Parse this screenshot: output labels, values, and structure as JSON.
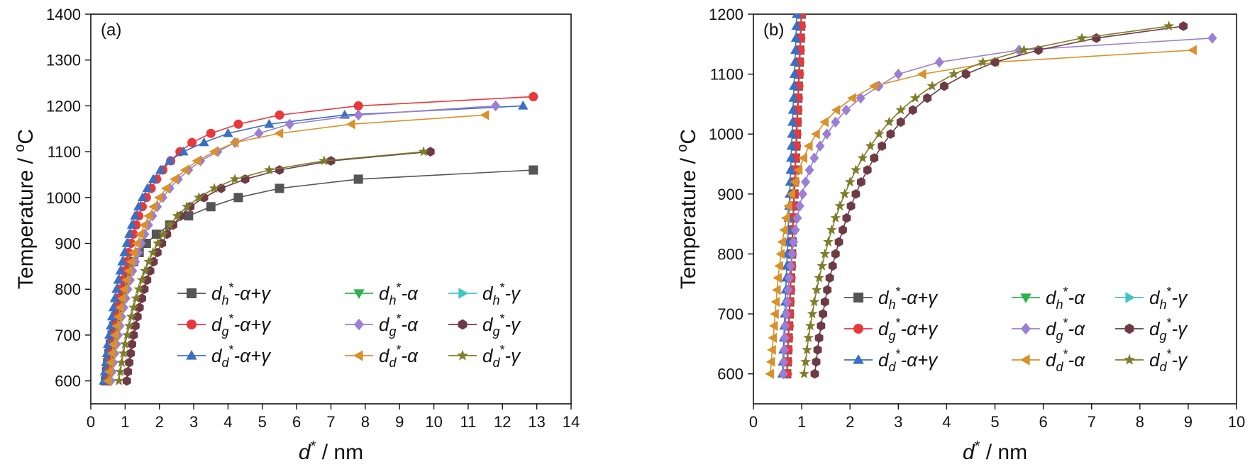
{
  "chart_data": [
    {
      "type": "line",
      "panel_label": "(a)",
      "xlabel": "d* / nm",
      "ylabel": "Temperature / oC",
      "xlim": [
        0,
        14
      ],
      "ylim": [
        550,
        1400
      ],
      "xticks": [
        "0",
        "1",
        "2",
        "3",
        "4",
        "5",
        "6",
        "7",
        "8",
        "9",
        "10",
        "11",
        "12",
        "13",
        "14"
      ],
      "yticks": [
        "600",
        "700",
        "800",
        "900",
        "1000",
        "1100",
        "1200",
        "1300",
        "1400"
      ],
      "legend_position": "bottom-right",
      "series": [
        {
          "name": "dh*-α+γ",
          "color": "#555555",
          "marker": "square",
          "x": [
            0.43,
            0.46,
            0.49,
            0.53,
            0.57,
            0.62,
            0.67,
            0.72,
            0.78,
            0.85,
            0.93,
            1.02,
            1.13,
            1.25,
            1.41,
            1.62,
            1.91,
            2.3,
            2.85,
            3.5,
            4.3,
            5.5,
            7.8,
            12.9
          ],
          "y": [
            600,
            620,
            640,
            660,
            680,
            700,
            720,
            740,
            760,
            780,
            800,
            820,
            840,
            860,
            880,
            900,
            920,
            940,
            960,
            980,
            1000,
            1020,
            1040,
            1060
          ]
        },
        {
          "name": "dg*-α+γ",
          "color": "#e8383b",
          "marker": "circle",
          "x": [
            0.46,
            0.49,
            0.52,
            0.56,
            0.6,
            0.64,
            0.68,
            0.72,
            0.77,
            0.82,
            0.87,
            0.92,
            0.98,
            1.04,
            1.1,
            1.17,
            1.24,
            1.32,
            1.4,
            1.5,
            1.62,
            1.76,
            1.92,
            2.1,
            2.33,
            2.6,
            2.95,
            3.5,
            4.3,
            5.5,
            7.8,
            12.9
          ],
          "y": [
            600,
            620,
            640,
            660,
            680,
            700,
            720,
            740,
            760,
            780,
            800,
            820,
            840,
            860,
            880,
            900,
            920,
            940,
            960,
            980,
            1000,
            1020,
            1040,
            1060,
            1080,
            1100,
            1120,
            1140,
            1160,
            1180,
            1200,
            1220
          ]
        },
        {
          "name": "dd*-α+γ",
          "color": "#3b6fc4",
          "marker": "triangle-up",
          "x": [
            0.38,
            0.41,
            0.44,
            0.47,
            0.5,
            0.54,
            0.58,
            0.62,
            0.66,
            0.7,
            0.75,
            0.8,
            0.86,
            0.92,
            0.98,
            1.05,
            1.12,
            1.2,
            1.29,
            1.39,
            1.51,
            1.65,
            1.82,
            2.03,
            2.3,
            2.7,
            3.3,
            4.0,
            5.2,
            7.4,
            12.6
          ],
          "y": [
            600,
            620,
            640,
            660,
            680,
            700,
            720,
            740,
            760,
            780,
            800,
            820,
            840,
            860,
            880,
            900,
            920,
            940,
            960,
            980,
            1000,
            1020,
            1040,
            1060,
            1080,
            1100,
            1120,
            1140,
            1160,
            1180,
            1200
          ]
        },
        {
          "name": "dh*-α",
          "color": "#2bb24c",
          "marker": "triangle-down",
          "x": [],
          "y": []
        },
        {
          "name": "dg*-α",
          "color": "#9b7fd4",
          "marker": "diamond",
          "x": [
            0.58,
            0.62,
            0.66,
            0.7,
            0.75,
            0.8,
            0.85,
            0.9,
            0.96,
            1.02,
            1.08,
            1.15,
            1.22,
            1.3,
            1.38,
            1.47,
            1.57,
            1.68,
            1.8,
            1.94,
            2.1,
            2.3,
            2.55,
            2.85,
            3.2,
            3.7,
            4.2,
            4.9,
            5.8,
            7.8,
            11.8
          ],
          "y": [
            600,
            620,
            640,
            660,
            680,
            700,
            720,
            740,
            760,
            780,
            800,
            820,
            840,
            860,
            880,
            900,
            920,
            940,
            960,
            980,
            1000,
            1020,
            1040,
            1060,
            1080,
            1100,
            1120,
            1140,
            1160,
            1180,
            1200
          ]
        },
        {
          "name": "dd*-α",
          "color": "#d9912a",
          "marker": "triangle-left",
          "x": [
            0.5,
            0.54,
            0.58,
            0.62,
            0.66,
            0.71,
            0.76,
            0.81,
            0.86,
            0.92,
            0.98,
            1.04,
            1.11,
            1.18,
            1.26,
            1.35,
            1.45,
            1.56,
            1.69,
            1.83,
            2.0,
            2.2,
            2.45,
            2.75,
            3.1,
            3.6,
            4.2,
            5.5,
            7.6,
            11.5
          ],
          "y": [
            600,
            620,
            640,
            660,
            680,
            700,
            720,
            740,
            760,
            780,
            800,
            820,
            840,
            860,
            880,
            900,
            920,
            940,
            960,
            980,
            1000,
            1020,
            1040,
            1060,
            1080,
            1100,
            1120,
            1140,
            1160,
            1180
          ]
        },
        {
          "name": "dh*-γ",
          "color": "#40c4c4",
          "marker": "triangle-right",
          "x": [],
          "y": []
        },
        {
          "name": "dg*-γ",
          "color": "#6e3a45",
          "marker": "hexagon",
          "x": [
            1.05,
            1.08,
            1.12,
            1.16,
            1.2,
            1.25,
            1.3,
            1.36,
            1.42,
            1.49,
            1.56,
            1.64,
            1.73,
            1.83,
            1.94,
            2.07,
            2.22,
            2.4,
            2.62,
            2.9,
            3.3,
            3.8,
            4.5,
            5.5,
            7.0,
            9.9
          ],
          "y": [
            600,
            620,
            640,
            660,
            680,
            700,
            720,
            740,
            760,
            780,
            800,
            820,
            840,
            860,
            880,
            900,
            920,
            940,
            960,
            980,
            1000,
            1020,
            1040,
            1060,
            1080,
            1100
          ]
        },
        {
          "name": "dd*-γ",
          "color": "#7d7d2a",
          "marker": "star",
          "x": [
            0.82,
            0.86,
            0.9,
            0.95,
            1.0,
            1.06,
            1.12,
            1.18,
            1.25,
            1.32,
            1.4,
            1.49,
            1.58,
            1.69,
            1.81,
            1.95,
            2.11,
            2.3,
            2.52,
            2.8,
            3.15,
            3.6,
            4.2,
            5.2,
            6.8,
            9.7
          ],
          "y": [
            600,
            620,
            640,
            660,
            680,
            700,
            720,
            740,
            760,
            780,
            800,
            820,
            840,
            860,
            880,
            900,
            920,
            940,
            960,
            980,
            1000,
            1020,
            1040,
            1060,
            1080,
            1100
          ]
        }
      ]
    },
    {
      "type": "line",
      "panel_label": "(b)",
      "xlabel": "d* / nm",
      "ylabel": "Temperature / oC",
      "xlim": [
        0,
        10
      ],
      "ylim": [
        550,
        1200
      ],
      "xticks": [
        "0",
        "1",
        "2",
        "3",
        "4",
        "5",
        "6",
        "7",
        "8",
        "9",
        "10"
      ],
      "yticks": [
        "600",
        "700",
        "800",
        "900",
        "1000",
        "1100",
        "1200"
      ],
      "legend_position": "bottom-right",
      "series": [
        {
          "name": "dh*-α+γ",
          "color": "#555555",
          "marker": "square",
          "x": [
            0.69,
            0.7,
            0.71,
            0.72,
            0.73,
            0.74,
            0.75,
            0.76,
            0.77,
            0.78,
            0.79,
            0.8,
            0.81,
            0.82,
            0.83,
            0.84,
            0.85,
            0.86,
            0.87,
            0.88,
            0.89,
            0.9,
            0.91,
            0.92,
            0.93,
            0.94,
            0.95,
            0.96,
            0.97,
            0.98,
            0.99
          ],
          "y": [
            600,
            620,
            640,
            660,
            680,
            700,
            720,
            740,
            760,
            780,
            800,
            820,
            840,
            860,
            880,
            900,
            920,
            940,
            960,
            980,
            1000,
            1020,
            1040,
            1060,
            1080,
            1100,
            1120,
            1140,
            1160,
            1180,
            1200
          ]
        },
        {
          "name": "dg*-α+γ",
          "color": "#e8383b",
          "marker": "circle",
          "x": [
            0.7,
            0.71,
            0.72,
            0.73,
            0.74,
            0.75,
            0.76,
            0.77,
            0.78,
            0.79,
            0.8,
            0.81,
            0.82,
            0.83,
            0.84,
            0.85,
            0.86,
            0.87,
            0.88,
            0.89,
            0.9,
            0.91,
            0.92,
            0.93,
            0.94,
            0.95,
            0.96,
            0.97,
            0.98,
            0.99,
            1.0
          ],
          "y": [
            600,
            620,
            640,
            660,
            680,
            700,
            720,
            740,
            760,
            780,
            800,
            820,
            840,
            860,
            880,
            900,
            920,
            940,
            960,
            980,
            1000,
            1020,
            1040,
            1060,
            1080,
            1100,
            1120,
            1140,
            1160,
            1180,
            1200
          ]
        },
        {
          "name": "dd*-α+γ",
          "color": "#3b6fc4",
          "marker": "triangle-up",
          "x": [
            0.6,
            0.61,
            0.62,
            0.63,
            0.64,
            0.65,
            0.66,
            0.67,
            0.68,
            0.69,
            0.7,
            0.71,
            0.72,
            0.73,
            0.74,
            0.75,
            0.76,
            0.77,
            0.78,
            0.79,
            0.8,
            0.81,
            0.82,
            0.83,
            0.84,
            0.85,
            0.86,
            0.87,
            0.88,
            0.89,
            0.9
          ],
          "y": [
            600,
            620,
            640,
            660,
            680,
            700,
            720,
            740,
            760,
            780,
            800,
            820,
            840,
            860,
            880,
            900,
            920,
            940,
            960,
            980,
            1000,
            1020,
            1040,
            1060,
            1080,
            1100,
            1120,
            1140,
            1160,
            1180,
            1200
          ]
        },
        {
          "name": "dh*-α",
          "color": "#2bb24c",
          "marker": "triangle-down",
          "x": [],
          "y": []
        },
        {
          "name": "dg*-α",
          "color": "#9b7fd4",
          "marker": "diamond",
          "x": [
            0.62,
            0.63,
            0.64,
            0.65,
            0.66,
            0.68,
            0.7,
            0.72,
            0.74,
            0.77,
            0.8,
            0.83,
            0.87,
            0.91,
            0.96,
            1.02,
            1.08,
            1.16,
            1.26,
            1.38,
            1.52,
            1.7,
            1.92,
            2.22,
            2.6,
            3.0,
            3.85,
            5.5,
            9.5
          ],
          "y": [
            600,
            620,
            640,
            660,
            680,
            700,
            720,
            740,
            760,
            780,
            800,
            820,
            840,
            860,
            880,
            900,
            920,
            940,
            960,
            980,
            1000,
            1020,
            1040,
            1060,
            1080,
            1100,
            1120,
            1140,
            1160
          ]
        },
        {
          "name": "dd*-α",
          "color": "#d9912a",
          "marker": "triangle-left",
          "x": [
            0.35,
            0.37,
            0.39,
            0.41,
            0.43,
            0.45,
            0.47,
            0.49,
            0.51,
            0.54,
            0.57,
            0.6,
            0.64,
            0.68,
            0.73,
            0.79,
            0.86,
            0.94,
            1.04,
            1.15,
            1.3,
            1.48,
            1.72,
            2.05,
            2.5,
            3.5,
            5.0,
            9.1
          ],
          "y": [
            600,
            620,
            640,
            660,
            680,
            700,
            720,
            740,
            760,
            780,
            800,
            820,
            840,
            860,
            880,
            900,
            920,
            940,
            960,
            980,
            1000,
            1020,
            1040,
            1060,
            1080,
            1100,
            1120,
            1140
          ]
        },
        {
          "name": "dh*-γ",
          "color": "#40c4c4",
          "marker": "triangle-right",
          "x": [],
          "y": []
        },
        {
          "name": "dg*-γ",
          "color": "#6e3a45",
          "marker": "hexagon",
          "x": [
            1.27,
            1.3,
            1.33,
            1.36,
            1.4,
            1.44,
            1.48,
            1.53,
            1.58,
            1.64,
            1.7,
            1.77,
            1.85,
            1.93,
            2.02,
            2.12,
            2.23,
            2.36,
            2.5,
            2.66,
            2.84,
            3.05,
            3.3,
            3.6,
            3.95,
            4.4,
            5.0,
            5.9,
            7.1,
            8.9
          ],
          "y": [
            600,
            620,
            640,
            660,
            680,
            700,
            720,
            740,
            760,
            780,
            800,
            820,
            840,
            860,
            880,
            900,
            920,
            940,
            960,
            980,
            1000,
            1020,
            1040,
            1060,
            1080,
            1100,
            1120,
            1140,
            1160,
            1180
          ]
        },
        {
          "name": "dd*-γ",
          "color": "#7d7d2a",
          "marker": "star",
          "x": [
            1.05,
            1.08,
            1.11,
            1.14,
            1.18,
            1.22,
            1.26,
            1.31,
            1.36,
            1.42,
            1.48,
            1.55,
            1.62,
            1.7,
            1.79,
            1.89,
            2.0,
            2.12,
            2.26,
            2.42,
            2.6,
            2.81,
            3.05,
            3.35,
            3.7,
            4.15,
            4.75,
            5.6,
            6.8,
            8.6
          ],
          "y": [
            600,
            620,
            640,
            660,
            680,
            700,
            720,
            740,
            760,
            780,
            800,
            820,
            840,
            860,
            880,
            900,
            920,
            940,
            960,
            980,
            1000,
            1020,
            1040,
            1060,
            1080,
            1100,
            1120,
            1140,
            1160,
            1180
          ]
        }
      ]
    }
  ],
  "legend": {
    "entries": [
      {
        "base": "d",
        "sub": "h",
        "sup": "*",
        "suffix": "-α+γ"
      },
      {
        "base": "d",
        "sub": "h",
        "sup": "*",
        "suffix": "-α"
      },
      {
        "base": "d",
        "sub": "h",
        "sup": "*",
        "suffix": "-γ"
      },
      {
        "base": "d",
        "sub": "g",
        "sup": "*",
        "suffix": "-α+γ"
      },
      {
        "base": "d",
        "sub": "g",
        "sup": "*",
        "suffix": "-α"
      },
      {
        "base": "d",
        "sub": "g",
        "sup": "*",
        "suffix": "-γ"
      },
      {
        "base": "d",
        "sub": "d",
        "sup": "*",
        "suffix": "-α+γ"
      },
      {
        "base": "d",
        "sub": "d",
        "sup": "*",
        "suffix": "-α"
      },
      {
        "base": "d",
        "sub": "d",
        "sup": "*",
        "suffix": "-γ"
      }
    ]
  },
  "axis_text": {
    "ylabel_main": "Temperature / ",
    "ylabel_sup": "o",
    "ylabel_unit": "C",
    "xlabel_base": "d",
    "xlabel_sup": "*",
    "xlabel_unit": " / nm"
  }
}
